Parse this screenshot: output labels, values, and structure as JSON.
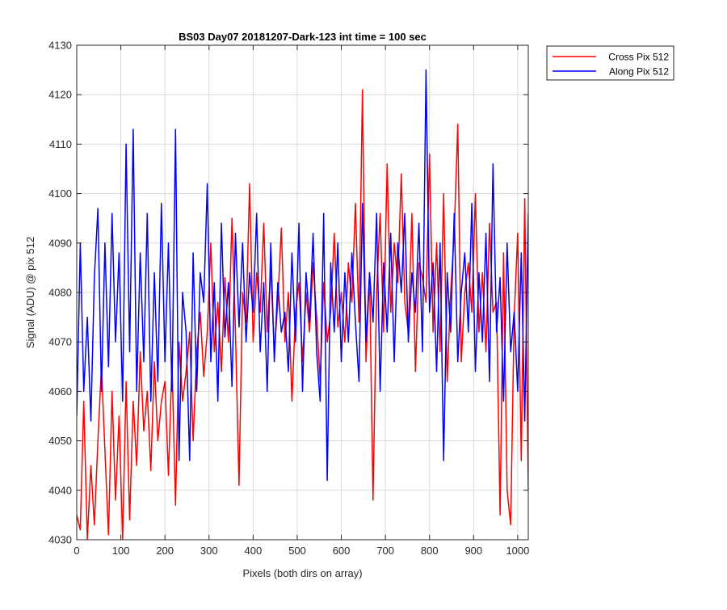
{
  "chart_data": {
    "type": "line",
    "title": "BS03 Day07 20181207-Dark-123 int time = 100 sec",
    "xlabel": "Pixels (both dirs on array)",
    "ylabel": "Signal (ADU) @ pix 512",
    "xlim": [
      0,
      1024
    ],
    "ylim": [
      4030,
      4130
    ],
    "xticks": [
      0,
      100,
      200,
      300,
      400,
      500,
      600,
      700,
      800,
      900,
      1000
    ],
    "yticks": [
      4030,
      4040,
      4050,
      4060,
      4070,
      4080,
      4090,
      4100,
      4110,
      4120,
      4130
    ],
    "grid": true,
    "legend_position": "outside-top-right",
    "series": [
      {
        "name": "Cross Pix 512",
        "color": "#ff0000",
        "x": [
          0,
          8,
          16,
          24,
          32,
          40,
          48,
          56,
          64,
          72,
          80,
          88,
          96,
          104,
          112,
          120,
          128,
          136,
          144,
          152,
          160,
          168,
          176,
          184,
          192,
          200,
          208,
          216,
          224,
          232,
          240,
          248,
          256,
          264,
          272,
          280,
          288,
          296,
          304,
          312,
          320,
          328,
          336,
          344,
          352,
          360,
          368,
          376,
          384,
          392,
          400,
          408,
          416,
          424,
          432,
          440,
          448,
          456,
          464,
          472,
          480,
          488,
          496,
          504,
          512,
          520,
          528,
          536,
          544,
          552,
          560,
          568,
          576,
          584,
          592,
          600,
          608,
          616,
          624,
          632,
          640,
          648,
          656,
          664,
          672,
          680,
          688,
          696,
          704,
          712,
          720,
          728,
          736,
          744,
          752,
          760,
          768,
          776,
          784,
          792,
          800,
          808,
          816,
          824,
          832,
          840,
          848,
          856,
          864,
          872,
          880,
          888,
          896,
          904,
          912,
          920,
          928,
          936,
          944,
          952,
          960,
          968,
          976,
          984,
          992,
          1000,
          1008,
          1016,
          1024
        ],
        "y": [
          4035,
          4032,
          4058,
          4030,
          4045,
          4033,
          4050,
          4065,
          4048,
          4031,
          4060,
          4038,
          4055,
          4030,
          4062,
          4034,
          4058,
          4045,
          4068,
          4052,
          4060,
          4044,
          4066,
          4050,
          4058,
          4062,
          4043,
          4066,
          4037,
          4070,
          4058,
          4064,
          4072,
          4050,
          4068,
          4076,
          4063,
          4072,
          4090,
          4068,
          4078,
          4064,
          4083,
          4070,
          4095,
          4072,
          4041,
          4080,
          4074,
          4102,
          4070,
          4084,
          4076,
          4094,
          4072,
          4085,
          4068,
          4078,
          4093,
          4070,
          4080,
          4058,
          4076,
          4082,
          4066,
          4080,
          4072,
          4086,
          4075,
          4062,
          4082,
          4070,
          4076,
          4092,
          4073,
          4080,
          4070,
          4086,
          4078,
          4098,
          4074,
          4121,
          4066,
          4084,
          4038,
          4080,
          4096,
          4072,
          4106,
          4076,
          4090,
          4082,
          4104,
          4078,
          4072,
          4096,
          4064,
          4086,
          4083,
          4078,
          4108,
          4072,
          4090,
          4068,
          4100,
          4062,
          4080,
          4092,
          4114,
          4066,
          4080,
          4086,
          4076,
          4100,
          4072,
          4084,
          4068,
          4094,
          4076,
          4078,
          4035,
          4088,
          4040,
          4033,
          4075,
          4092,
          4046,
          4099,
          4040
        ]
      },
      {
        "name": "Along Pix 512",
        "color": "#0000ff",
        "x": [
          0,
          8,
          16,
          24,
          32,
          40,
          48,
          56,
          64,
          72,
          80,
          88,
          96,
          104,
          112,
          120,
          128,
          136,
          144,
          152,
          160,
          168,
          176,
          184,
          192,
          200,
          208,
          216,
          224,
          232,
          240,
          248,
          256,
          264,
          272,
          280,
          288,
          296,
          304,
          312,
          320,
          328,
          336,
          344,
          352,
          360,
          368,
          376,
          384,
          392,
          400,
          408,
          416,
          424,
          432,
          440,
          448,
          456,
          464,
          472,
          480,
          488,
          496,
          504,
          512,
          520,
          528,
          536,
          544,
          552,
          560,
          568,
          576,
          584,
          592,
          600,
          608,
          616,
          624,
          632,
          640,
          648,
          656,
          664,
          672,
          680,
          688,
          696,
          704,
          712,
          720,
          728,
          736,
          744,
          752,
          760,
          768,
          776,
          784,
          792,
          800,
          808,
          816,
          824,
          832,
          840,
          848,
          856,
          864,
          872,
          880,
          888,
          896,
          904,
          912,
          920,
          928,
          936,
          944,
          952,
          960,
          968,
          976,
          984,
          992,
          1000,
          1008,
          1016,
          1024
        ],
        "y": [
          4055,
          4090,
          4060,
          4075,
          4054,
          4083,
          4097,
          4060,
          4090,
          4065,
          4096,
          4070,
          4088,
          4058,
          4110,
          4068,
          4113,
          4060,
          4088,
          4066,
          4096,
          4058,
          4084,
          4062,
          4098,
          4066,
          4090,
          4060,
          4113,
          4046,
          4080,
          4072,
          4046,
          4088,
          4060,
          4084,
          4078,
          4102,
          4066,
          4082,
          4058,
          4094,
          4071,
          4082,
          4061,
          4092,
          4073,
          4090,
          4070,
          4084,
          4076,
          4096,
          4068,
          4082,
          4060,
          4090,
          4066,
          4082,
          4072,
          4076,
          4064,
          4088,
          4070,
          4094,
          4060,
          4084,
          4074,
          4092,
          4068,
          4058,
          4096,
          4042,
          4086,
          4072,
          4090,
          4066,
          4084,
          4070,
          4088,
          4074,
          4062,
          4098,
          4070,
          4084,
          4074,
          4096,
          4060,
          4086,
          4072,
          4092,
          4066,
          4090,
          4080,
          4096,
          4070,
          4084,
          4076,
          4094,
          4068,
          4125,
          4076,
          4086,
          4064,
          4090,
          4046,
          4084,
          4072,
          4096,
          4066,
          4080,
          4088,
          4072,
          4098,
          4064,
          4084,
          4070,
          4092,
          4062,
          4106,
          4072,
          4083,
          4058,
          4090,
          4068,
          4076,
          4060,
          4088,
          4054,
          4096
        ]
      }
    ]
  }
}
